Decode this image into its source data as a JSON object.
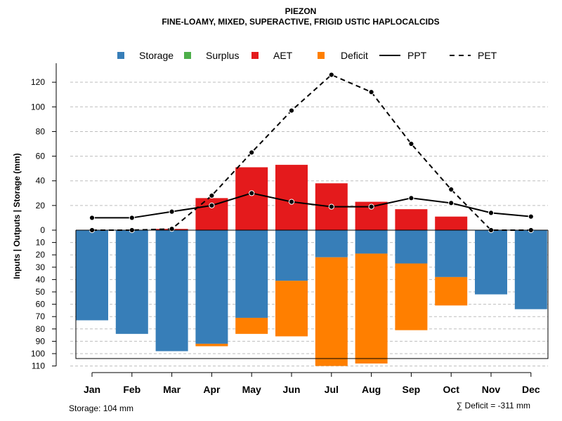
{
  "chart_data": {
    "type": "bar",
    "title": "PIEZON",
    "subtitle": "FINE-LOAMY, MIXED, SUPERACTIVE, FRIGID USTIC HAPLOCALCIDS",
    "ylabel": "Inputs | Outputs | Storage    (mm)",
    "categories": [
      "Jan",
      "Feb",
      "Mar",
      "Apr",
      "May",
      "Jun",
      "Jul",
      "Aug",
      "Sep",
      "Oct",
      "Nov",
      "Dec"
    ],
    "upper_ylim": [
      0,
      130
    ],
    "upper_ticks": [
      0,
      20,
      40,
      60,
      80,
      100,
      120
    ],
    "lower_ylim": [
      0,
      110
    ],
    "lower_ticks": [
      10,
      20,
      30,
      40,
      50,
      60,
      70,
      80,
      90,
      100,
      110
    ],
    "series": [
      {
        "name": "Storage",
        "color": "#377EB8",
        "values": [
          73,
          84,
          98,
          92,
          71,
          41,
          22,
          19,
          27,
          38,
          52,
          64
        ]
      },
      {
        "name": "Surplus",
        "color": "#4DAF4A",
        "values": [
          0,
          0,
          0,
          0,
          0,
          0,
          0,
          0,
          0,
          0,
          0,
          0
        ]
      },
      {
        "name": "AET",
        "color": "#E41A1C",
        "values": [
          0,
          0,
          1,
          26,
          51,
          53,
          38,
          23,
          17,
          11,
          0,
          0
        ]
      },
      {
        "name": "Deficit",
        "color": "#FF7F00",
        "values": [
          0,
          0,
          0,
          2,
          13,
          45,
          88,
          89,
          54,
          23,
          0,
          0
        ]
      },
      {
        "name": "PPT",
        "color": "#000000",
        "values": [
          10,
          10,
          15,
          20,
          30,
          23,
          19,
          19,
          26,
          22,
          14,
          11
        ]
      },
      {
        "name": "PET",
        "color": "#000000",
        "values": [
          0,
          0,
          1,
          28,
          63,
          97,
          126,
          112,
          70,
          33,
          0,
          0
        ]
      }
    ],
    "legend": [
      "Storage",
      "Surplus",
      "AET",
      "Deficit",
      "PPT",
      "PET"
    ],
    "legend_placement": "top",
    "grid": true
  },
  "notes": {
    "storage": "Storage: 104 mm",
    "deficit": "∑ Deficit = -311 mm"
  }
}
